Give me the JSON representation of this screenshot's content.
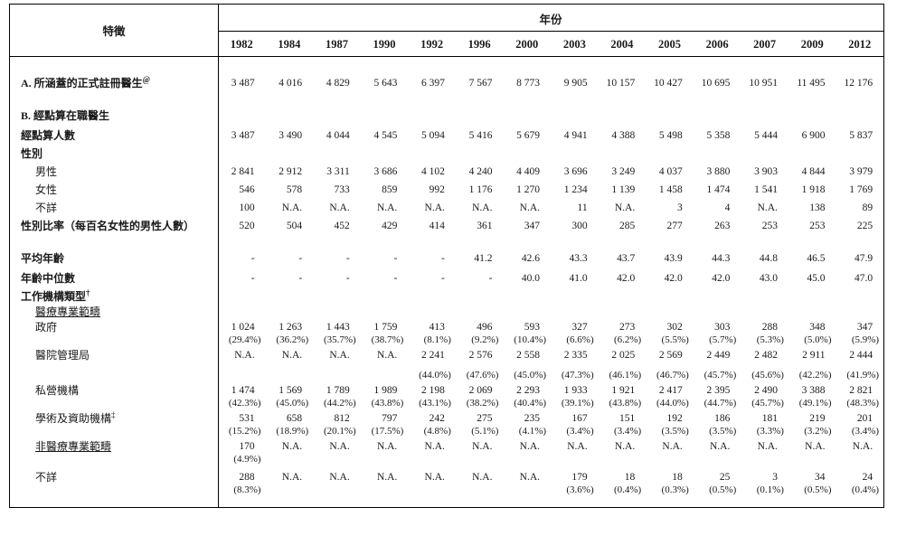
{
  "table": {
    "stub_header": "特徵",
    "year_group_header": "年份",
    "years": [
      "1982",
      "1984",
      "1987",
      "1990",
      "1992",
      "1996",
      "2000",
      "2003",
      "2004",
      "2005",
      "2006",
      "2007",
      "2009",
      "2012"
    ],
    "rows": [
      {
        "label": "A.  所涵蓋的正式註冊醫生",
        "sup": "@",
        "variant": "section",
        "gap": "gap-lg",
        "values": [
          "3 487",
          "4 016",
          "4 829",
          "5 643",
          "6 397",
          "7 567",
          "8 773",
          "9 905",
          "10 157",
          "10 427",
          "10 695",
          "10 951",
          "11 495",
          "12 176"
        ]
      },
      {
        "label": "B.  經點算在職醫生",
        "variant": "section",
        "gap": "gap-lg"
      },
      {
        "label": "經點算人數",
        "bold": true,
        "gap": "gap-md",
        "values": [
          "3 487",
          "3 490",
          "4 044",
          "4 545",
          "5 094",
          "5 416",
          "5 679",
          "4 941",
          "4 388",
          "5 498",
          "5 358",
          "5 444",
          "6 900",
          "5 837"
        ]
      },
      {
        "label": "性別",
        "bold": true,
        "gap": "gap-sm"
      },
      {
        "label": "男性",
        "indent": true,
        "gap": "gap-sm",
        "values": [
          "2 841",
          "2 912",
          "3 311",
          "3 686",
          "4 102",
          "4 240",
          "4 409",
          "3 696",
          "3 249",
          "4 037",
          "3 880",
          "3 903",
          "4 844",
          "3 979"
        ]
      },
      {
        "label": "女性",
        "indent": true,
        "gap": "gap-sm",
        "values": [
          "546",
          "578",
          "733",
          "859",
          "992",
          "1 176",
          "1 270",
          "1 234",
          "1 139",
          "1 458",
          "1 474",
          "1 541",
          "1 918",
          "1 769"
        ]
      },
      {
        "label": "不詳",
        "indent": true,
        "gap": "gap-sm",
        "values": [
          "100",
          "N.A.",
          "N.A.",
          "N.A.",
          "N.A.",
          "N.A.",
          "N.A.",
          "11",
          "N.A.",
          "3",
          "4",
          "N.A.",
          "138",
          "89"
        ]
      },
      {
        "label": "性別比率（每百名女性的男性人數）",
        "bold": true,
        "gap": "gap-sm",
        "values": [
          "520",
          "504",
          "452",
          "429",
          "414",
          "361",
          "347",
          "300",
          "285",
          "277",
          "263",
          "253",
          "253",
          "225"
        ]
      },
      {
        "label": "平均年齡",
        "bold": true,
        "gap": "gap-lg",
        "values": [
          "-",
          "-",
          "-",
          "-",
          "-",
          "41.2",
          "42.6",
          "43.3",
          "43.7",
          "43.9",
          "44.3",
          "44.8",
          "46.5",
          "47.9"
        ]
      },
      {
        "label": "年齡中位數",
        "bold": true,
        "gap": "gap-md",
        "values": [
          "-",
          "-",
          "-",
          "-",
          "-",
          "-",
          "40.0",
          "41.0",
          "42.0",
          "42.0",
          "42.0",
          "43.0",
          "45.0",
          "47.0"
        ]
      },
      {
        "label": "工作機構類型",
        "sup": "†",
        "bold": true,
        "gap": "gap-sm"
      },
      {
        "label": "醫療專業範疇",
        "indent": true,
        "underline": true,
        "gap": "gap-xs"
      },
      {
        "label": "政府",
        "indent": true,
        "gap": "gap-xs",
        "values": [
          "1 024",
          "1 263",
          "1 443",
          "1 759",
          "413",
          "496",
          "593",
          "327",
          "273",
          "302",
          "303",
          "288",
          "348",
          "347"
        ],
        "percents": [
          "(29.4%)",
          "(36.2%)",
          "(35.7%)",
          "(38.7%)",
          "(8.1%)",
          "(9.2%)",
          "(10.4%)",
          "(6.6%)",
          "(6.2%)",
          "(5.5%)",
          "(5.7%)",
          "(5.3%)",
          "(5.0%)",
          "(5.9%)"
        ]
      },
      {
        "label": "醫院管理局",
        "indent": true,
        "gap": "gap-xs",
        "pct_gap": true,
        "values": [
          "N.A.",
          "N.A.",
          "N.A.",
          "N.A.",
          "2 241",
          "2 576",
          "2 558",
          "2 335",
          "2 025",
          "2 569",
          "2 449",
          "2 482",
          "2 911",
          "2 444"
        ],
        "percents": [
          "",
          "",
          "",
          "",
          "(44.0%)",
          "(47.6%)",
          "(45.0%)",
          "(47.3%)",
          "(46.1%)",
          "(46.7%)",
          "(45.7%)",
          "(45.6%)",
          "(42.2%)",
          "(41.9%)"
        ]
      },
      {
        "label": "私營機構",
        "indent": true,
        "gap": "gap-xs",
        "values": [
          "1 474",
          "1 569",
          "1 789",
          "1 989",
          "2 198",
          "2 069",
          "2 293",
          "1 933",
          "1 921",
          "2 417",
          "2 395",
          "2 490",
          "3 388",
          "2 821"
        ],
        "percents": [
          "(42.3%)",
          "(45.0%)",
          "(44.2%)",
          "(43.8%)",
          "(43.1%)",
          "(38.2%)",
          "(40.4%)",
          "(39.1%)",
          "(43.8%)",
          "(44.0%)",
          "(44.7%)",
          "(45.7%)",
          "(49.1%)",
          "(48.3%)"
        ]
      },
      {
        "label": "學術及資助機構",
        "sup": "‡",
        "indent": true,
        "gap": "gap-xs",
        "values": [
          "531",
          "658",
          "812",
          "797",
          "242",
          "275",
          "235",
          "167",
          "151",
          "192",
          "186",
          "181",
          "219",
          "201"
        ],
        "percents": [
          "(15.2%)",
          "(18.9%)",
          "(20.1%)",
          "(17.5%)",
          "(4.8%)",
          "(5.1%)",
          "(4.1%)",
          "(3.4%)",
          "(3.4%)",
          "(3.5%)",
          "(3.5%)",
          "(3.3%)",
          "(3.2%)",
          "(3.4%)"
        ]
      },
      {
        "label": "非醫療專業範疇",
        "indent": true,
        "underline": true,
        "gap": "gap-xs",
        "values": [
          "170",
          "N.A.",
          "N.A.",
          "N.A.",
          "N.A.",
          "N.A.",
          "N.A.",
          "N.A.",
          "N.A.",
          "N.A.",
          "N.A.",
          "N.A.",
          "N.A.",
          "N.A."
        ],
        "percents": [
          "(4.9%)",
          "",
          "",
          "",
          "",
          "",
          "",
          "",
          "",
          "",
          "",
          "",
          "",
          ""
        ]
      },
      {
        "label": "不詳",
        "indent": true,
        "gap": "gap-sm",
        "values": [
          "288",
          "N.A.",
          "N.A.",
          "N.A.",
          "N.A.",
          "N.A.",
          "N.A.",
          "179",
          "18",
          "18",
          "25",
          "3",
          "34",
          "24"
        ],
        "percents": [
          "(8.3%)",
          "",
          "",
          "",
          "",
          "",
          "",
          "(3.6%)",
          "(0.4%)",
          "(0.3%)",
          "(0.5%)",
          "(0.1%)",
          "(0.5%)",
          "(0.4%)"
        ]
      }
    ]
  }
}
